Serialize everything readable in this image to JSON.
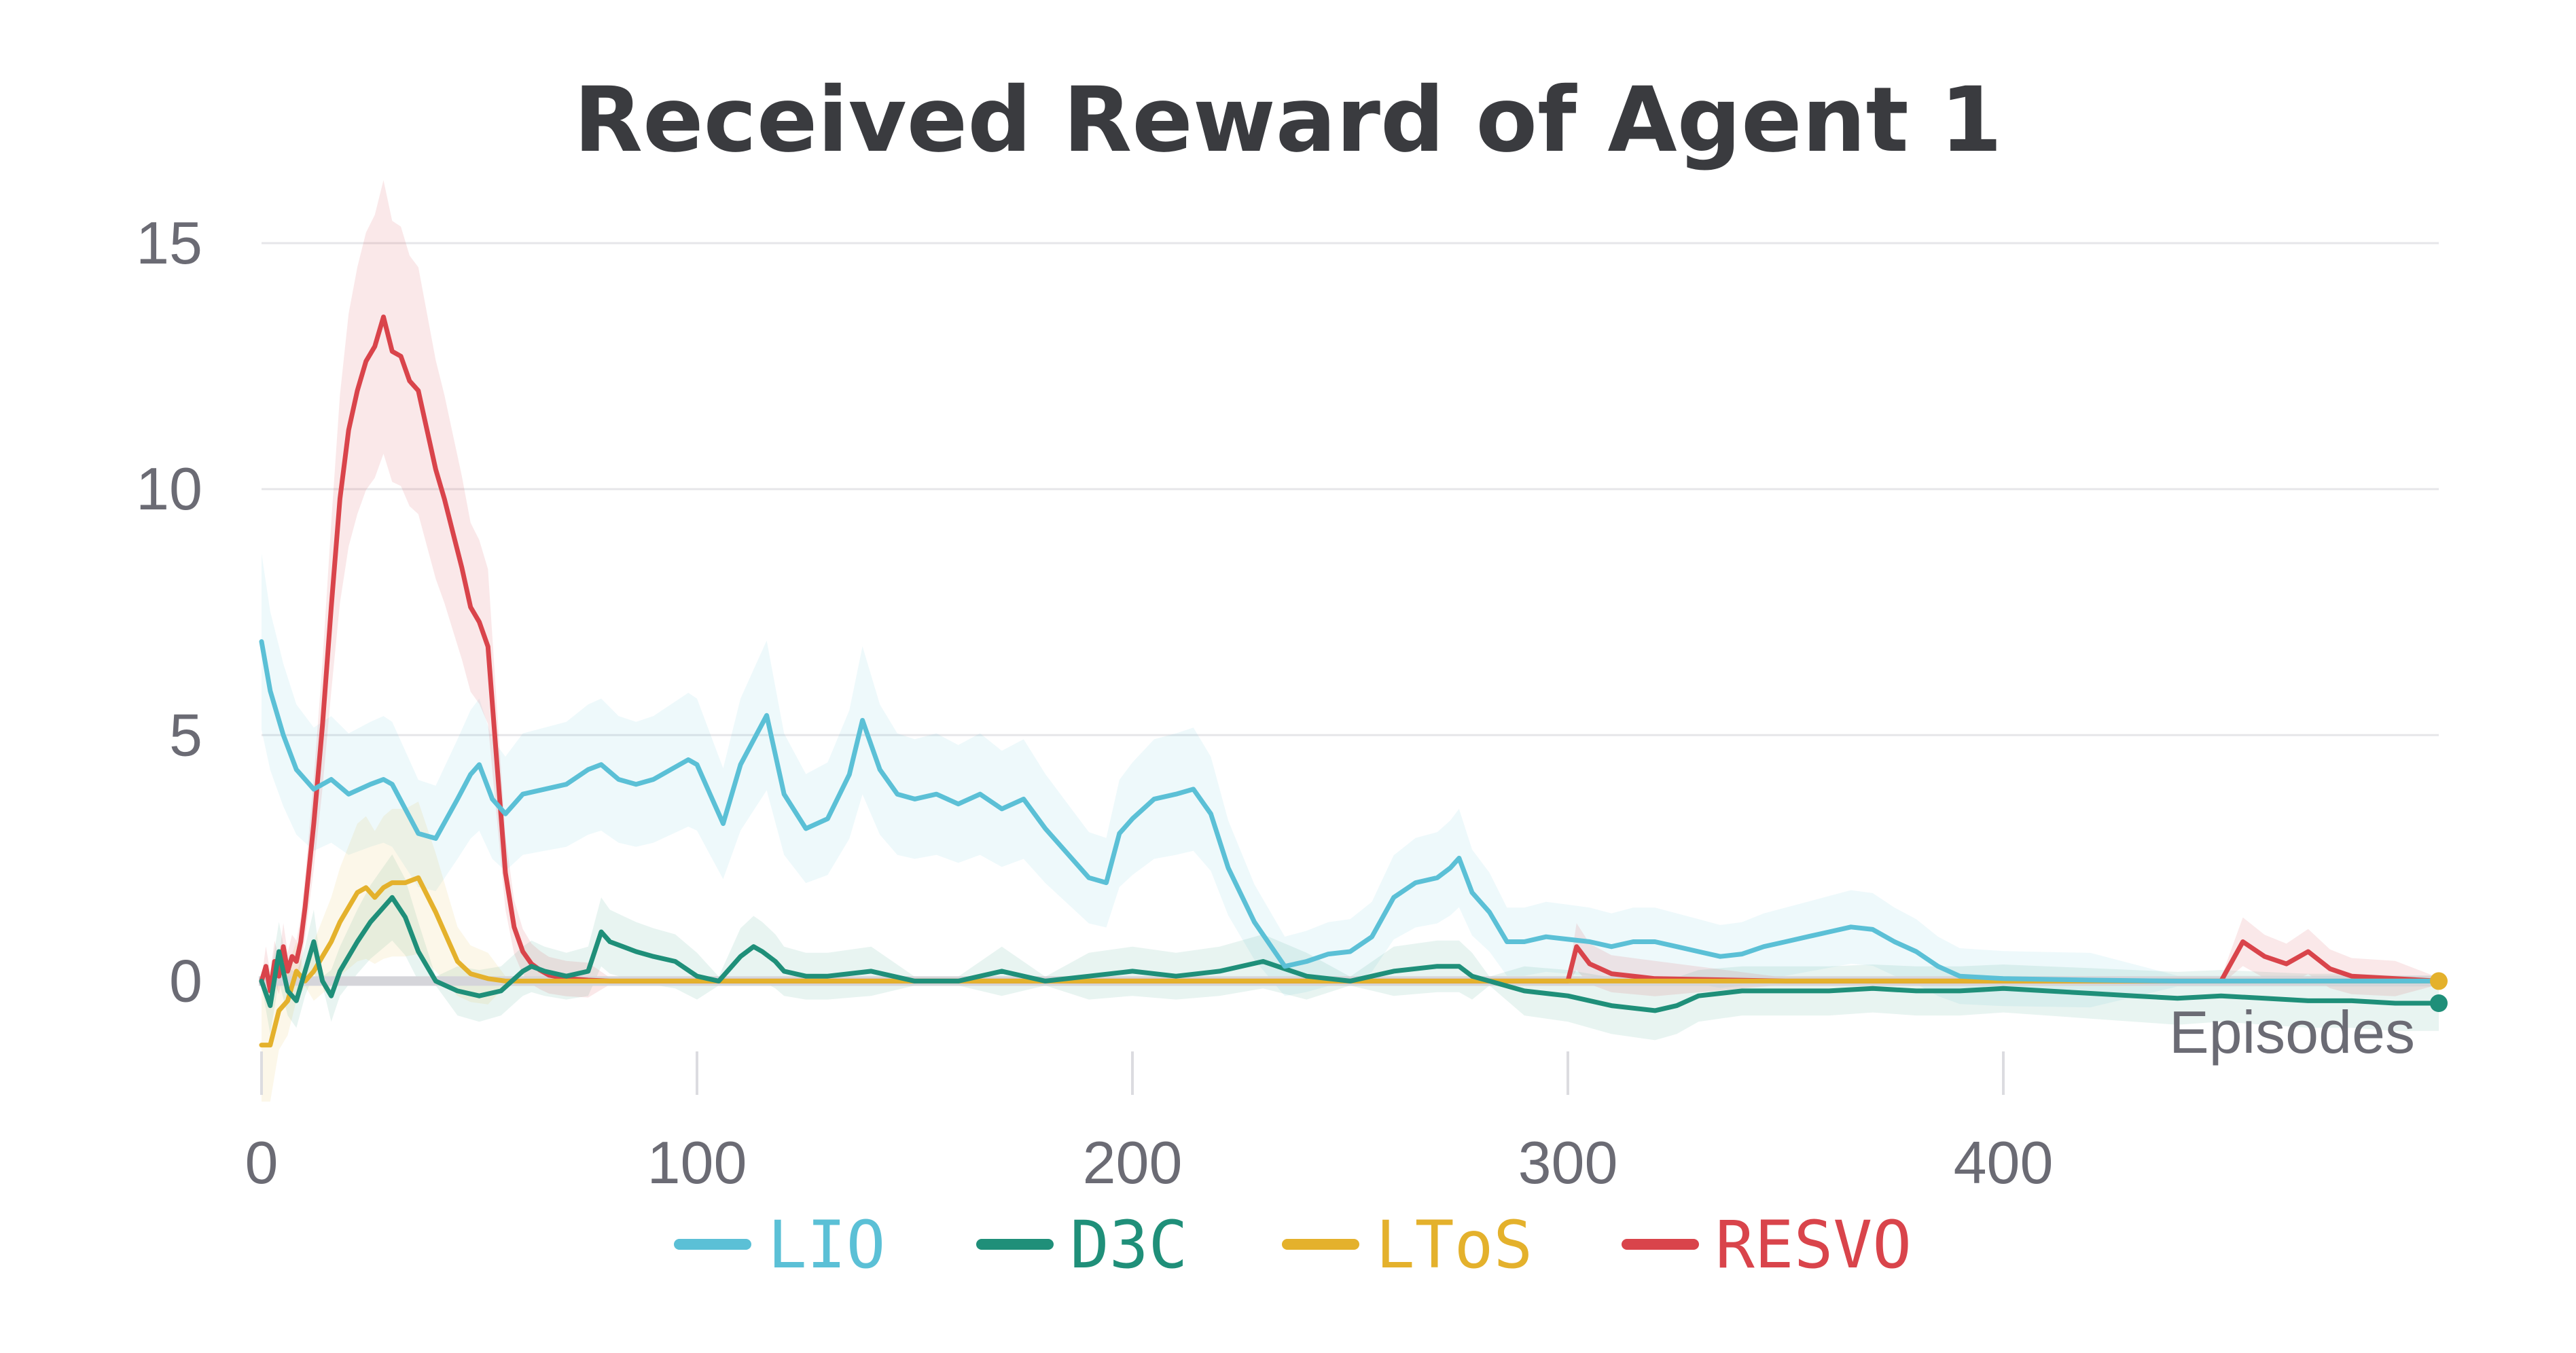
{
  "chart_data": {
    "type": "line",
    "title": "Received Reward of Agent 1",
    "xlabel": "Episodes",
    "ylabel": "",
    "xlim": [
      0,
      500
    ],
    "ylim": [
      -2.7,
      15.8
    ],
    "x_ticks": [
      "0",
      "100",
      "200",
      "300",
      "400"
    ],
    "y_ticks": [
      "0",
      "5",
      "10",
      "15"
    ],
    "grid": "horizontal",
    "legend_position": "bottom",
    "series": [
      {
        "name": "LIO",
        "color": "#5bc0d6",
        "x": [
          0,
          2,
          5,
          8,
          12,
          16,
          20,
          25,
          28,
          30,
          33,
          36,
          40,
          45,
          48,
          50,
          53,
          56,
          60,
          65,
          70,
          75,
          78,
          82,
          86,
          90,
          94,
          98,
          100,
          103,
          106,
          110,
          113,
          116,
          120,
          125,
          130,
          135,
          138,
          142,
          146,
          150,
          155,
          160,
          165,
          170,
          175,
          180,
          185,
          190,
          194,
          197,
          200,
          205,
          210,
          214,
          218,
          222,
          228,
          235,
          240,
          245,
          250,
          255,
          260,
          265,
          270,
          273,
          275,
          278,
          282,
          286,
          290,
          295,
          300,
          305,
          310,
          315,
          320,
          325,
          330,
          335,
          340,
          345,
          350,
          355,
          360,
          365,
          370,
          375,
          380,
          385,
          390,
          400,
          420,
          440,
          460,
          480,
          500
        ],
        "y": [
          6.9,
          5.9,
          5.0,
          4.3,
          3.9,
          4.1,
          3.8,
          4.0,
          4.1,
          4.0,
          3.5,
          3.0,
          2.9,
          3.7,
          4.2,
          4.4,
          3.7,
          3.4,
          3.8,
          3.9,
          4.0,
          4.3,
          4.4,
          4.1,
          4.0,
          4.1,
          4.3,
          4.5,
          4.4,
          3.8,
          3.2,
          4.4,
          4.9,
          5.4,
          3.8,
          3.1,
          3.3,
          4.2,
          5.3,
          4.3,
          3.8,
          3.7,
          3.8,
          3.6,
          3.8,
          3.5,
          3.7,
          3.1,
          2.6,
          2.1,
          2.0,
          3.0,
          3.3,
          3.7,
          3.8,
          3.9,
          3.4,
          2.3,
          1.2,
          0.3,
          0.4,
          0.55,
          0.6,
          0.9,
          1.7,
          2.0,
          2.1,
          2.3,
          2.5,
          1.8,
          1.4,
          0.8,
          0.8,
          0.9,
          0.85,
          0.8,
          0.7,
          0.8,
          0.8,
          0.7,
          0.6,
          0.5,
          0.55,
          0.7,
          0.8,
          0.9,
          1.0,
          1.1,
          1.05,
          0.8,
          0.6,
          0.3,
          0.1,
          0.05,
          0.02,
          0.0,
          0.0,
          0.0,
          0.0
        ]
      },
      {
        "name": "D3C",
        "color": "#1f8f79",
        "x": [
          0,
          2,
          4,
          6,
          8,
          10,
          12,
          14,
          16,
          18,
          20,
          22,
          25,
          28,
          30,
          33,
          36,
          40,
          45,
          50,
          55,
          60,
          62,
          65,
          70,
          75,
          78,
          80,
          83,
          86,
          90,
          95,
          100,
          105,
          110,
          113,
          115,
          118,
          120,
          125,
          130,
          140,
          150,
          160,
          170,
          180,
          190,
          200,
          210,
          220,
          230,
          240,
          250,
          260,
          270,
          275,
          278,
          282,
          290,
          300,
          310,
          320,
          325,
          330,
          340,
          350,
          360,
          370,
          380,
          390,
          400,
          410,
          420,
          430,
          440,
          450,
          460,
          470,
          480,
          490,
          500
        ],
        "y": [
          0.0,
          -0.5,
          0.6,
          -0.2,
          -0.4,
          0.2,
          0.8,
          0.0,
          -0.3,
          0.2,
          0.5,
          0.8,
          1.2,
          1.5,
          1.7,
          1.3,
          0.6,
          0.0,
          -0.2,
          -0.3,
          -0.2,
          0.2,
          0.3,
          0.2,
          0.1,
          0.2,
          1.0,
          0.8,
          0.7,
          0.6,
          0.5,
          0.4,
          0.1,
          0.0,
          0.5,
          0.7,
          0.6,
          0.4,
          0.2,
          0.1,
          0.1,
          0.2,
          0.0,
          0.0,
          0.2,
          0.0,
          0.1,
          0.2,
          0.1,
          0.2,
          0.4,
          0.1,
          0.0,
          0.2,
          0.3,
          0.3,
          0.1,
          0.0,
          -0.2,
          -0.3,
          -0.5,
          -0.6,
          -0.5,
          -0.3,
          -0.2,
          -0.2,
          -0.2,
          -0.15,
          -0.2,
          -0.2,
          -0.15,
          -0.2,
          -0.25,
          -0.3,
          -0.35,
          -0.3,
          -0.35,
          -0.4,
          -0.4,
          -0.45,
          -0.45
        ]
      },
      {
        "name": "LToS",
        "color": "#e4b12c",
        "x": [
          0,
          2,
          4,
          6,
          8,
          10,
          12,
          14,
          16,
          18,
          20,
          22,
          24,
          26,
          28,
          30,
          33,
          36,
          40,
          43,
          45,
          48,
          52,
          56,
          60,
          70,
          100,
          200,
          300,
          400,
          500
        ],
        "y": [
          -1.3,
          -1.3,
          -0.6,
          -0.4,
          0.2,
          0.0,
          0.2,
          0.5,
          0.8,
          1.2,
          1.5,
          1.8,
          1.9,
          1.7,
          1.9,
          2.0,
          2.0,
          2.1,
          1.4,
          0.8,
          0.4,
          0.15,
          0.05,
          0.0,
          0.0,
          0.0,
          0.0,
          0.0,
          0.0,
          0.0,
          0.0
        ]
      },
      {
        "name": "RESVO",
        "color": "#d9444b",
        "x": [
          0,
          1,
          2,
          3,
          4,
          5,
          6,
          7,
          8,
          9,
          10,
          12,
          14,
          16,
          18,
          20,
          22,
          24,
          26,
          28,
          30,
          32,
          34,
          36,
          38,
          40,
          42,
          44,
          46,
          48,
          50,
          52,
          54,
          56,
          58,
          60,
          62,
          64,
          66,
          70,
          75,
          80,
          100,
          200,
          300,
          302,
          305,
          310,
          320,
          350,
          400,
          450,
          455,
          460,
          465,
          470,
          475,
          480,
          490,
          500
        ],
        "y": [
          0.0,
          0.3,
          -0.2,
          0.4,
          0.1,
          0.7,
          0.2,
          0.5,
          0.4,
          0.8,
          1.5,
          3.2,
          5.2,
          7.6,
          9.8,
          11.2,
          12.0,
          12.6,
          12.9,
          13.5,
          12.8,
          12.7,
          12.2,
          12.0,
          11.2,
          10.4,
          9.8,
          9.1,
          8.4,
          7.6,
          7.3,
          6.8,
          4.5,
          2.2,
          1.1,
          0.6,
          0.35,
          0.22,
          0.12,
          0.05,
          0.02,
          0.0,
          0.0,
          0.0,
          0.0,
          0.7,
          0.35,
          0.15,
          0.05,
          0.0,
          0.0,
          0.0,
          0.8,
          0.5,
          0.35,
          0.6,
          0.25,
          0.1,
          0.05,
          0.0
        ]
      }
    ]
  }
}
